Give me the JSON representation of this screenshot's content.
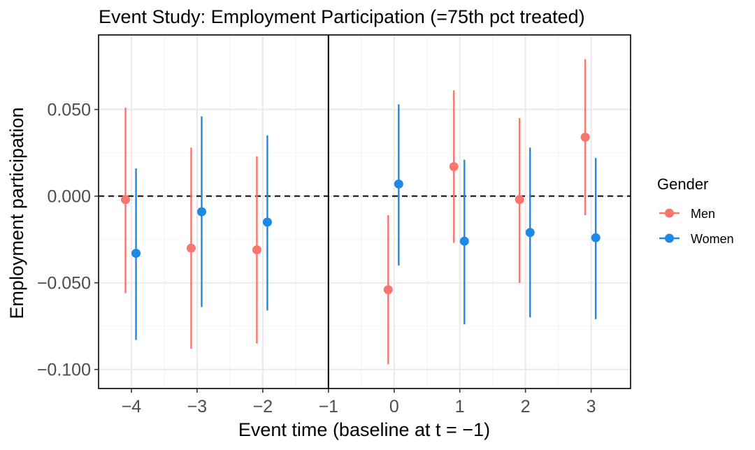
{
  "chart_data": {
    "type": "scatter",
    "title": "Event Study: Employment Participation (=75th pct treated)",
    "xlabel": "Event time (baseline at t = −1)",
    "ylabel": "Employment participation",
    "x_ticks": [
      -4,
      -3,
      -2,
      -1,
      0,
      1,
      2,
      3
    ],
    "x_tick_labels": [
      "−4",
      "−3",
      "−2",
      "−1",
      "0",
      "1",
      "2",
      "3"
    ],
    "y_ticks": [
      -0.1,
      -0.05,
      0,
      0.05
    ],
    "y_tick_labels": [
      "−0.100",
      "−0.050",
      "0.000",
      "0.050"
    ],
    "xlim": [
      -4.5,
      3.6
    ],
    "ylim": [
      -0.111,
      0.093
    ],
    "grid": true,
    "reference_lines": {
      "horizontal_dashed_at": 0,
      "vertical_solid_at": -1
    },
    "legend": {
      "title": "Gender",
      "placement": "right"
    },
    "series": [
      {
        "name": "Men",
        "color": "#F8766D",
        "points": [
          {
            "x": -4,
            "y": -0.002,
            "lo": -0.056,
            "hi": 0.051
          },
          {
            "x": -3,
            "y": -0.03,
            "lo": -0.088,
            "hi": 0.028
          },
          {
            "x": -2,
            "y": -0.031,
            "lo": -0.085,
            "hi": 0.023
          },
          {
            "x": 0,
            "y": -0.054,
            "lo": -0.097,
            "hi": -0.011
          },
          {
            "x": 1,
            "y": 0.017,
            "lo": -0.027,
            "hi": 0.061
          },
          {
            "x": 2,
            "y": -0.002,
            "lo": -0.05,
            "hi": 0.045
          },
          {
            "x": 3,
            "y": 0.034,
            "lo": -0.011,
            "hi": 0.079
          }
        ]
      },
      {
        "name": "Women",
        "color": "#1E88E5",
        "points": [
          {
            "x": -4,
            "y": -0.033,
            "lo": -0.083,
            "hi": 0.016
          },
          {
            "x": -3,
            "y": -0.009,
            "lo": -0.064,
            "hi": 0.046
          },
          {
            "x": -2,
            "y": -0.015,
            "lo": -0.066,
            "hi": 0.035
          },
          {
            "x": 0,
            "y": 0.007,
            "lo": -0.04,
            "hi": 0.053
          },
          {
            "x": 1,
            "y": -0.026,
            "lo": -0.074,
            "hi": 0.021
          },
          {
            "x": 2,
            "y": -0.021,
            "lo": -0.07,
            "hi": 0.028
          },
          {
            "x": 3,
            "y": -0.024,
            "lo": -0.071,
            "hi": 0.022
          }
        ]
      }
    ]
  }
}
